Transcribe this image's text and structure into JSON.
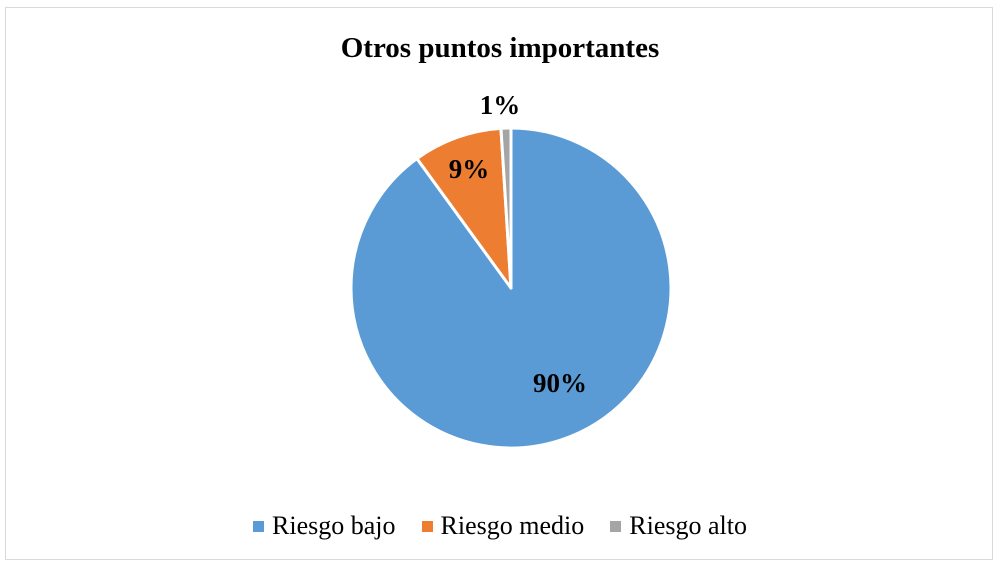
{
  "chart_data": {
    "type": "pie",
    "title": "Otros puntos importantes",
    "slices": [
      {
        "label": "Riesgo bajo",
        "value": 90,
        "data_label": "90%",
        "color": "#5b9bd5"
      },
      {
        "label": "Riesgo medio",
        "value": 9,
        "data_label": "9%",
        "color": "#ed7d31"
      },
      {
        "label": "Riesgo alto",
        "value": 1,
        "data_label": "1%",
        "color": "#a5a5a5"
      }
    ],
    "legend_position": "bottom"
  }
}
